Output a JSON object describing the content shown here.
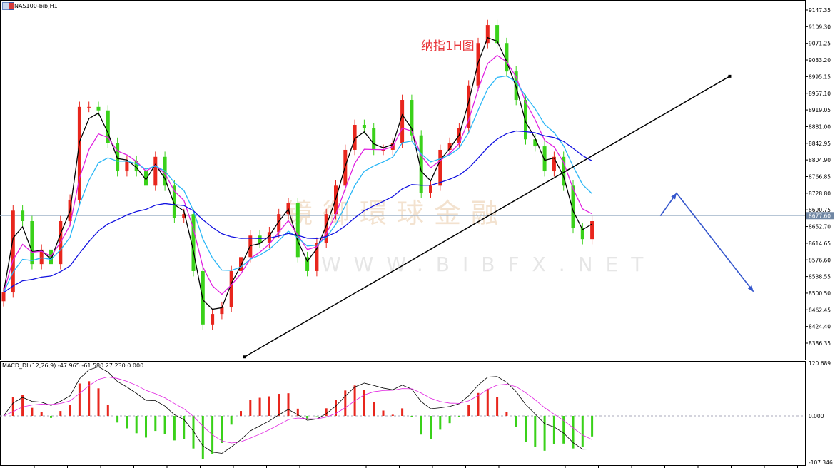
{
  "header": {
    "symbol": "NAS100-bib,H1"
  },
  "annotation_title": "纳指1H图",
  "watermark": {
    "text": "镜御環球金融",
    "url": "WWW.BIBFX.NET"
  },
  "colors": {
    "bull": "#e8261d",
    "bear": "#3ad11a",
    "fast_ma": "#000000",
    "mid_ma": "#e020e0",
    "slow_ma": "#29b6f6",
    "long_ma": "#1010e0",
    "arrow": "#3355cc",
    "price_line": "#9fb3c8"
  },
  "chart_data": [
    {
      "type": "candlestick",
      "title": "",
      "ylim": [
        8367.33,
        9164.0
      ],
      "y_ticks": [
        "9147.35",
        "9109.30",
        "9071.25",
        "9033.20",
        "8995.15",
        "8957.10",
        "8919.05",
        "8881.00",
        "8842.95",
        "8804.90",
        "8766.85",
        "8728.80",
        "8690.75",
        "8652.70",
        "8614.65",
        "8576.60",
        "8538.55",
        "8500.50",
        "8462.45",
        "8424.40",
        "8386.35"
      ],
      "current_price": "8677.60",
      "closes": [
        8502,
        8689,
        8665,
        8567,
        8600,
        8567,
        8665,
        8714,
        8926,
        8926,
        8918,
        8844,
        8779,
        8803,
        8779,
        8746,
        8812,
        8746,
        8673,
        8681,
        8551,
        8429,
        8453,
        8469,
        8551,
        8583,
        8632,
        8616,
        8640,
        8681,
        8706,
        8583,
        8551,
        8616,
        8681,
        8746,
        8828,
        8885,
        8877,
        8828,
        8828,
        8844,
        8942,
        8861,
        8730,
        8746,
        8828,
        8844,
        8877,
        8975,
        9072,
        9113,
        9072,
        9007,
        8942,
        8852,
        8836,
        8779,
        8812,
        8746,
        8649,
        8624,
        8665
      ],
      "trendline": {
        "from": [
          25.4,
          8355
        ],
        "to": [
          76.5,
          8996
        ]
      },
      "arrow_path": [
        [
          69.2,
          8677
        ],
        [
          70.9,
          8729
        ],
        [
          79,
          8504
        ]
      ]
    },
    {
      "type": "bar",
      "title": "MACD_DL(12,26,9) -47.965 -61.580 27.230 0.000",
      "ylim": [
        -107.346,
        120.689
      ],
      "y_ticks": [
        "120.689",
        "0.000",
        "-107.346"
      ]
    }
  ]
}
